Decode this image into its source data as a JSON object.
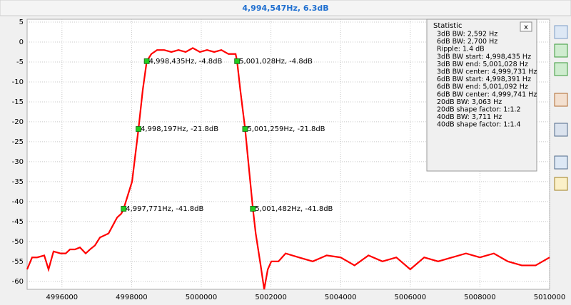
{
  "header": {
    "title": "4,994,547Hz, 6.3dB"
  },
  "chart_data": {
    "type": "line",
    "x": [
      4995000,
      4995143,
      4995287,
      4995492,
      4995615,
      4995758,
      4995963,
      4996107,
      4996230,
      4996373,
      4996517,
      4996681,
      4996804,
      4996947,
      4997091,
      4997214,
      4997337,
      4997460,
      4997583,
      4997706,
      4997771,
      4998013,
      4998197,
      4998320,
      4998435,
      4998567,
      4998731,
      4998936,
      4999141,
      4999346,
      4999551,
      4999756,
      4999961,
      5000166,
      5000371,
      5000576,
      5000781,
      5000986,
      5001028,
      5001120,
      5001259,
      5001350,
      5001482,
      5001563,
      5001705,
      5001806,
      5001909,
      5002011,
      5002216,
      5002421,
      5002800,
      5003200,
      5003600,
      5004000,
      5004400,
      5004800,
      5005200,
      5005600,
      5006000,
      5006400,
      5006800,
      5007200,
      5007600,
      5008000,
      5008400,
      5008800,
      5009200,
      5009600,
      5010000
    ],
    "series": [
      {
        "color": "#ff0000",
        "values": [
          -57,
          -54,
          -54,
          -53.5,
          -57,
          -52.5,
          -53,
          -53,
          -52,
          -52,
          -51.5,
          -53,
          -52,
          -51,
          -49,
          -48.5,
          -48,
          -46,
          -44,
          -43,
          -41.8,
          -35,
          -21.8,
          -12,
          -4.8,
          -3,
          -2,
          -2,
          -2.5,
          -2,
          -2.5,
          -1.5,
          -2.5,
          -2,
          -2.5,
          -2,
          -3,
          -3,
          -4.8,
          -12,
          -21.8,
          -30,
          -41.8,
          -48,
          -56,
          -62,
          -57,
          -55,
          -55,
          -53,
          -54,
          -55,
          -53.5,
          -54,
          -56,
          -53.5,
          -55,
          -54,
          -57,
          -54,
          -55,
          -54,
          -53,
          -54,
          -53,
          -55,
          -56,
          -56,
          -54
        ]
      }
    ],
    "annotations": [
      {
        "x": 4998435,
        "y": -4.8,
        "text": "4,998,435Hz, -4.8dB"
      },
      {
        "x": 5001028,
        "y": -4.8,
        "text": "5,001,028Hz, -4.8dB"
      },
      {
        "x": 4998197,
        "y": -21.8,
        "text": "4,998,197Hz, -21.8dB"
      },
      {
        "x": 5001259,
        "y": -21.8,
        "text": "5,001,259Hz, -21.8dB"
      },
      {
        "x": 4997771,
        "y": -41.8,
        "text": "4,997,771Hz, -41.8dB"
      },
      {
        "x": 5001482,
        "y": -41.8,
        "text": "5,001,482Hz, -41.8dB"
      }
    ],
    "marker_color": "#22cc22",
    "xlim": [
      4995000,
      5010000
    ],
    "xticks": [
      4996000,
      4998000,
      5000000,
      5002000,
      5004000,
      5006000,
      5008000,
      5010000
    ],
    "ylim": [
      -62,
      5
    ],
    "yticks": [
      5,
      0,
      -5,
      -10,
      -15,
      -20,
      -25,
      -30,
      -35,
      -40,
      -45,
      -50,
      -55,
      -60
    ],
    "grid": true
  },
  "statistic": {
    "title": "Statistic",
    "close": "x",
    "lines": [
      "3dB BW: 2,592 Hz",
      "6dB BW: 2,700 Hz",
      "Ripple: 1.4 dB",
      "3dB BW start: 4,998,435 Hz",
      "3dB BW end: 5,001,028 Hz",
      "3dB BW center: 4,999,731 Hz",
      "6dB BW start: 4,998,391 Hz",
      "6dB BW end: 5,001,092 Hz",
      "6dB BW center: 4,999,741 Hz",
      "20dB BW: 3,063 Hz",
      "20dB shape factor: 1:1.2",
      "40dB BW: 3,711 Hz",
      "40dB shape factor: 1:1.4"
    ]
  }
}
